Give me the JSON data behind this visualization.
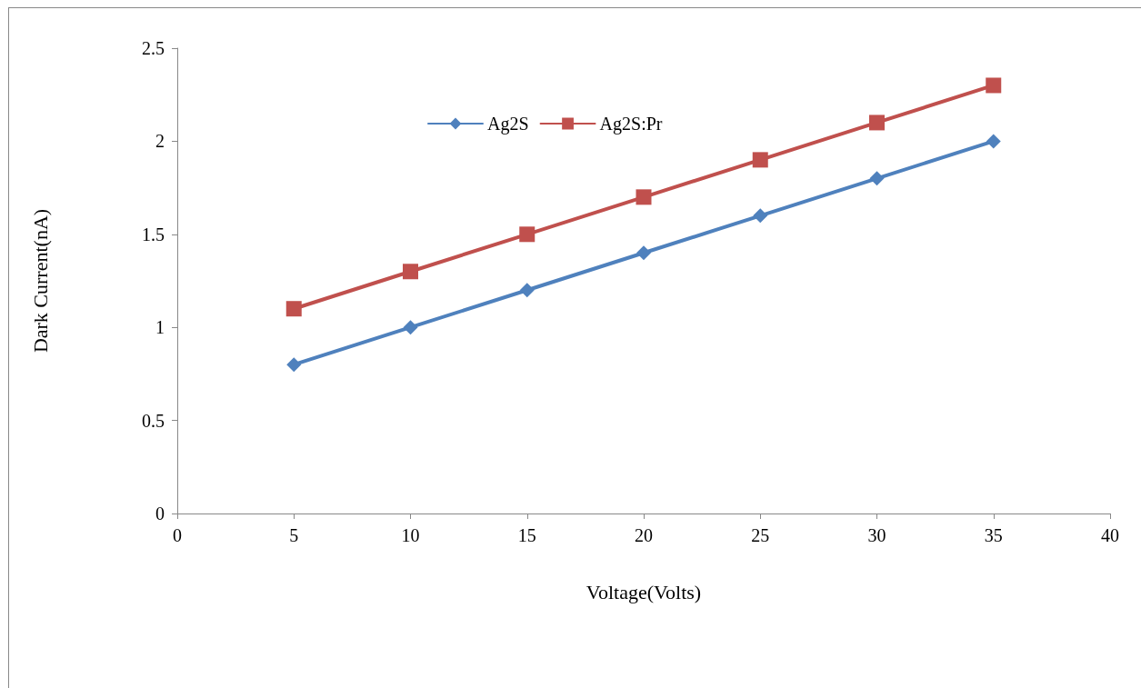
{
  "chart_data": {
    "type": "line",
    "xlabel": "Voltage(Volts)",
    "ylabel": "Dark Current(nA)",
    "x": [
      5,
      10,
      15,
      20,
      25,
      30,
      35
    ],
    "series": [
      {
        "name": "Ag2S",
        "color": "#4f81bd",
        "marker": "diamond",
        "values": [
          0.8,
          1.0,
          1.2,
          1.4,
          1.6,
          1.8,
          2.0
        ]
      },
      {
        "name": "Ag2S:Pr",
        "color": "#c0504d",
        "marker": "square",
        "values": [
          1.1,
          1.3,
          1.5,
          1.7,
          1.9,
          2.1,
          2.3
        ]
      }
    ],
    "xlim": [
      0,
      40
    ],
    "xticks": [
      0,
      5,
      10,
      15,
      20,
      25,
      30,
      35,
      40
    ],
    "ylim": [
      0,
      2.5
    ],
    "yticks": [
      0,
      0.5,
      1,
      1.5,
      2,
      2.5
    ],
    "grid": false,
    "legend": "top",
    "line_style": "solid"
  }
}
